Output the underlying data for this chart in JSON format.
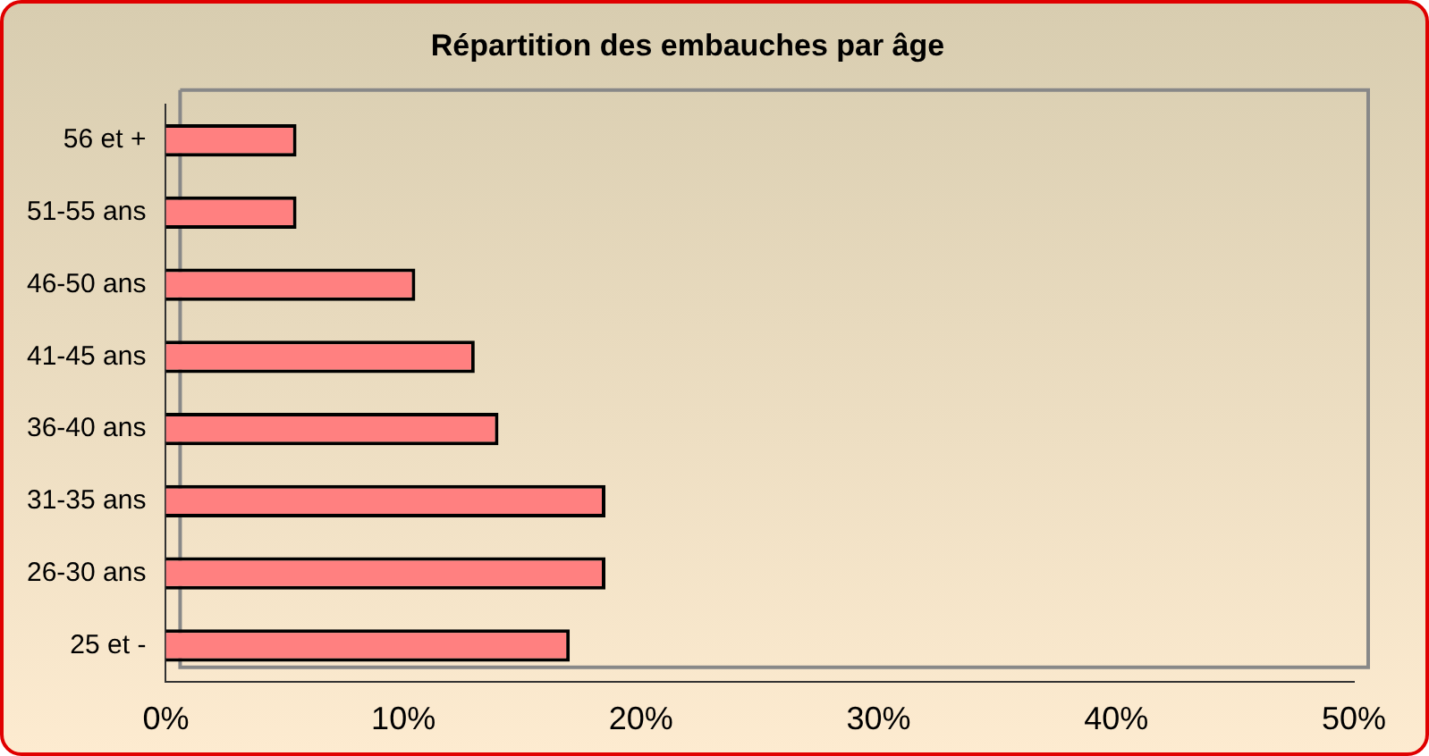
{
  "chart_data": {
    "type": "bar",
    "orientation": "horizontal",
    "title": "Répartition des embauches par âge",
    "categories": [
      "56 et +",
      "51-55 ans",
      "46-50 ans",
      "41-45 ans",
      "36-40 ans",
      "31-35 ans",
      "26-30 ans",
      "25 et -"
    ],
    "values": [
      5.5,
      5.5,
      10.5,
      13,
      14,
      18.5,
      18.5,
      17
    ],
    "color": "#ff8080",
    "xlim": [
      0,
      50
    ],
    "xticks": [
      {
        "value": 0,
        "label": "0%"
      },
      {
        "value": 10,
        "label": "10%"
      },
      {
        "value": 20,
        "label": "20%"
      },
      {
        "value": 30,
        "label": "30%"
      },
      {
        "value": 40,
        "label": "40%"
      },
      {
        "value": 50,
        "label": "50%"
      }
    ],
    "grid": false,
    "legend": false
  }
}
